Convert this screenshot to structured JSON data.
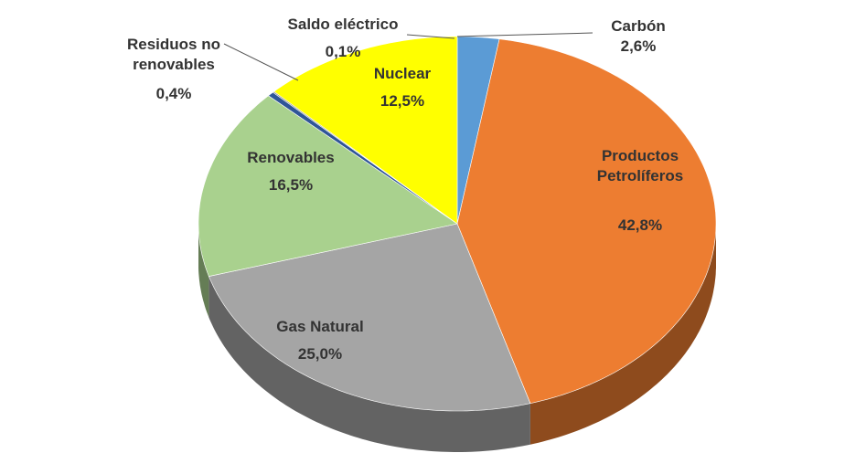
{
  "chart_data": {
    "type": "pie",
    "categories": [
      "Carbón",
      "Productos Petrolíferos",
      "Gas Natural",
      "Renovables",
      "Residuos no renovables",
      "Saldo eléctrico",
      "Nuclear"
    ],
    "values": [
      2.6,
      42.8,
      25.0,
      16.5,
      0.4,
      0.1,
      12.5
    ],
    "value_labels": [
      "2,6%",
      "42,8%",
      "25,0%",
      "16,5%",
      "0,4%",
      "0,1%",
      "12,5%"
    ],
    "colors": [
      "#5b9bd5",
      "#ed7d31",
      "#a5a5a5",
      "#a9d18e",
      "#2f5597",
      "#7f7f7f",
      "#ffff00"
    ]
  }
}
